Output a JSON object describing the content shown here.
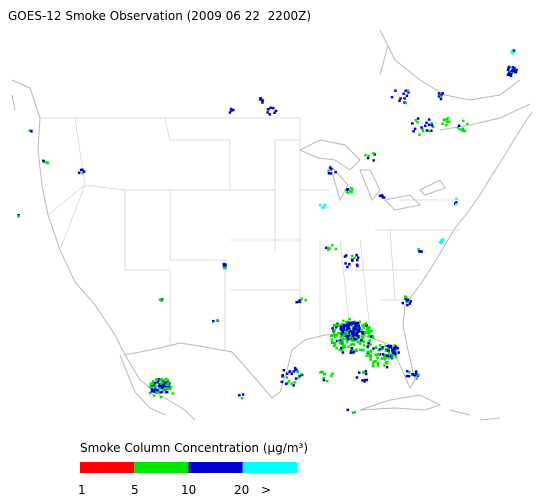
{
  "title": "GOES-12 Smoke Observation (2009 06 22  2200Z)",
  "legend": {
    "title": "Smoke Column Concentration (μg/m³)",
    "colors": [
      "#ff0000",
      "#00e600",
      "#0000d0",
      "#00ffff"
    ],
    "labels": [
      "1",
      "5",
      "10",
      "20",
      ">"
    ]
  }
}
